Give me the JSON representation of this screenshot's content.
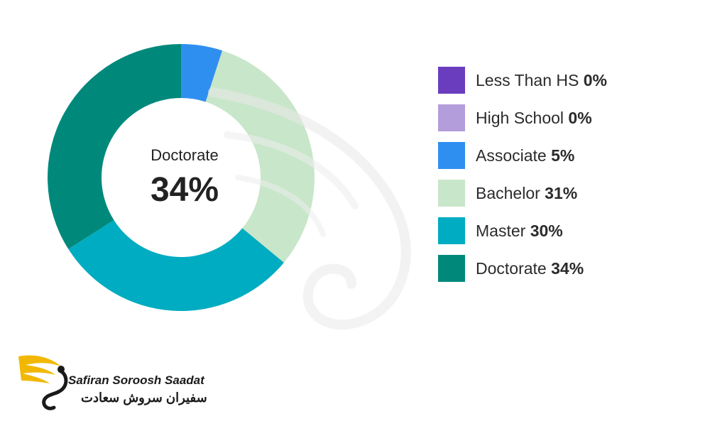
{
  "chart_data": {
    "type": "pie",
    "center_label": {
      "title": "Doctorate",
      "value": "34%"
    },
    "slices": [
      {
        "label": "Less Than HS",
        "value": 0,
        "value_label": "0%",
        "color": "#6a3dbf"
      },
      {
        "label": "High School",
        "value": 0,
        "value_label": "0%",
        "color": "#b39ddb"
      },
      {
        "label": "Associate",
        "value": 5,
        "value_label": "5%",
        "color": "#2f8ff0"
      },
      {
        "label": "Bachelor",
        "value": 31,
        "value_label": "31%",
        "color": "#c8e6c9"
      },
      {
        "label": "Master",
        "value": 30,
        "value_label": "30%",
        "color": "#00acc1"
      },
      {
        "label": "Doctorate",
        "value": 34,
        "value_label": "34%",
        "color": "#00897b"
      }
    ],
    "legend_position": "right"
  },
  "brand": {
    "name_en": "Safiran Soroosh Saadat",
    "name_fa": "سفیران سروش سعادت",
    "logo_color": "#f2b800"
  }
}
